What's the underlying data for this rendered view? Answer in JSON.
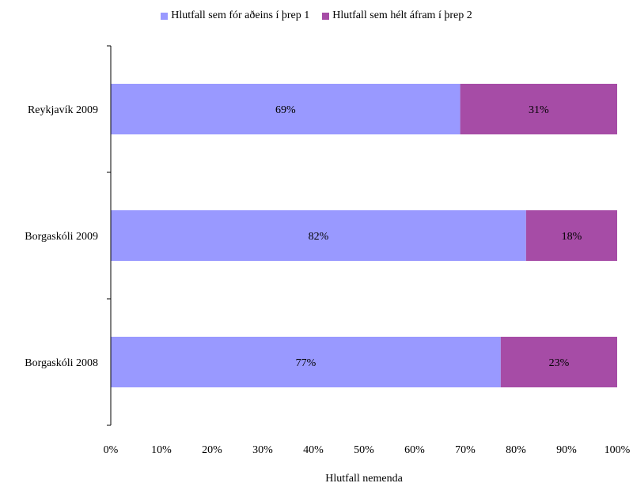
{
  "chart_data": {
    "type": "bar",
    "orientation": "horizontal",
    "stacked": true,
    "categories": [
      "Reykjavík 2009",
      "Borgaskóli 2009",
      "Borgaskóli 2008"
    ],
    "series": [
      {
        "name": "Hlutfall sem fór aðeins í þrep 1",
        "values": [
          69,
          82,
          77
        ],
        "color": "#9999ff"
      },
      {
        "name": "Hlutfall sem hélt áfram í þrep 2",
        "values": [
          31,
          18,
          23
        ],
        "color": "#a64ca6"
      }
    ],
    "xlabel": "Hlutfall nemenda",
    "ylabel": "",
    "xlim": [
      0,
      100
    ],
    "xticks": [
      "0%",
      "10%",
      "20%",
      "30%",
      "40%",
      "50%",
      "60%",
      "70%",
      "80%",
      "90%",
      "100%"
    ],
    "value_suffix": "%",
    "legend_position": "top",
    "grid": false
  }
}
